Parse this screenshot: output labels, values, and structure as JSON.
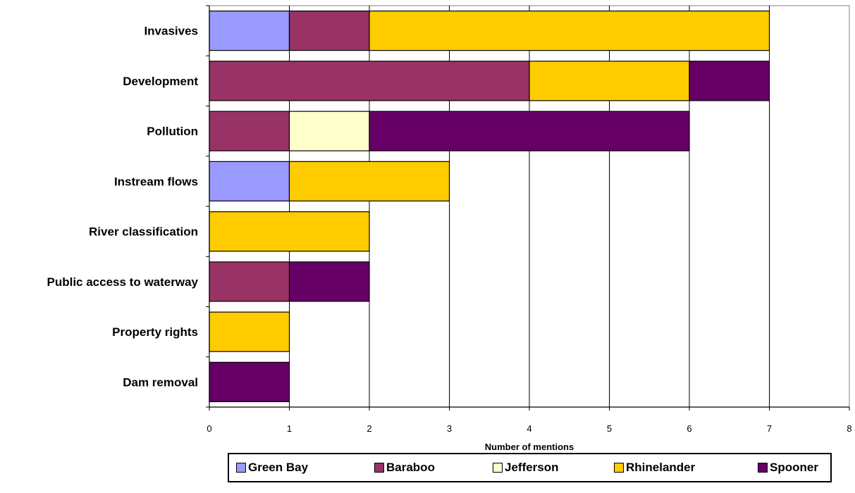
{
  "chart_data": {
    "type": "bar",
    "orientation": "horizontal",
    "stacked": true,
    "categories": [
      "Invasives",
      "Development",
      "Pollution",
      "Instream flows",
      "River classification",
      "Public access to waterway",
      "Property rights",
      "Dam removal"
    ],
    "series": [
      {
        "name": "Green Bay",
        "color": "#9999ff",
        "values": [
          1,
          0,
          0,
          1,
          0,
          0,
          0,
          0
        ]
      },
      {
        "name": "Baraboo",
        "color": "#993366",
        "values": [
          1,
          4,
          1,
          0,
          0,
          1,
          0,
          0
        ]
      },
      {
        "name": "Jefferson",
        "color": "#ffffcc",
        "values": [
          0,
          0,
          1,
          0,
          0,
          0,
          0,
          0
        ]
      },
      {
        "name": "Rhinelander",
        "color": "#ffcc00",
        "values": [
          5,
          2,
          0,
          2,
          2,
          0,
          1,
          0
        ]
      },
      {
        "name": "Spooner",
        "color": "#660066",
        "values": [
          0,
          1,
          4,
          0,
          0,
          1,
          0,
          1
        ]
      }
    ],
    "xlabel": "Number of mentions",
    "ylabel": "",
    "xlim": [
      0,
      8
    ],
    "xticks": [
      "0",
      "1",
      "2",
      "3",
      "4",
      "5",
      "6",
      "7",
      "8"
    ],
    "grid": "vertical",
    "legend_position": "bottom"
  }
}
